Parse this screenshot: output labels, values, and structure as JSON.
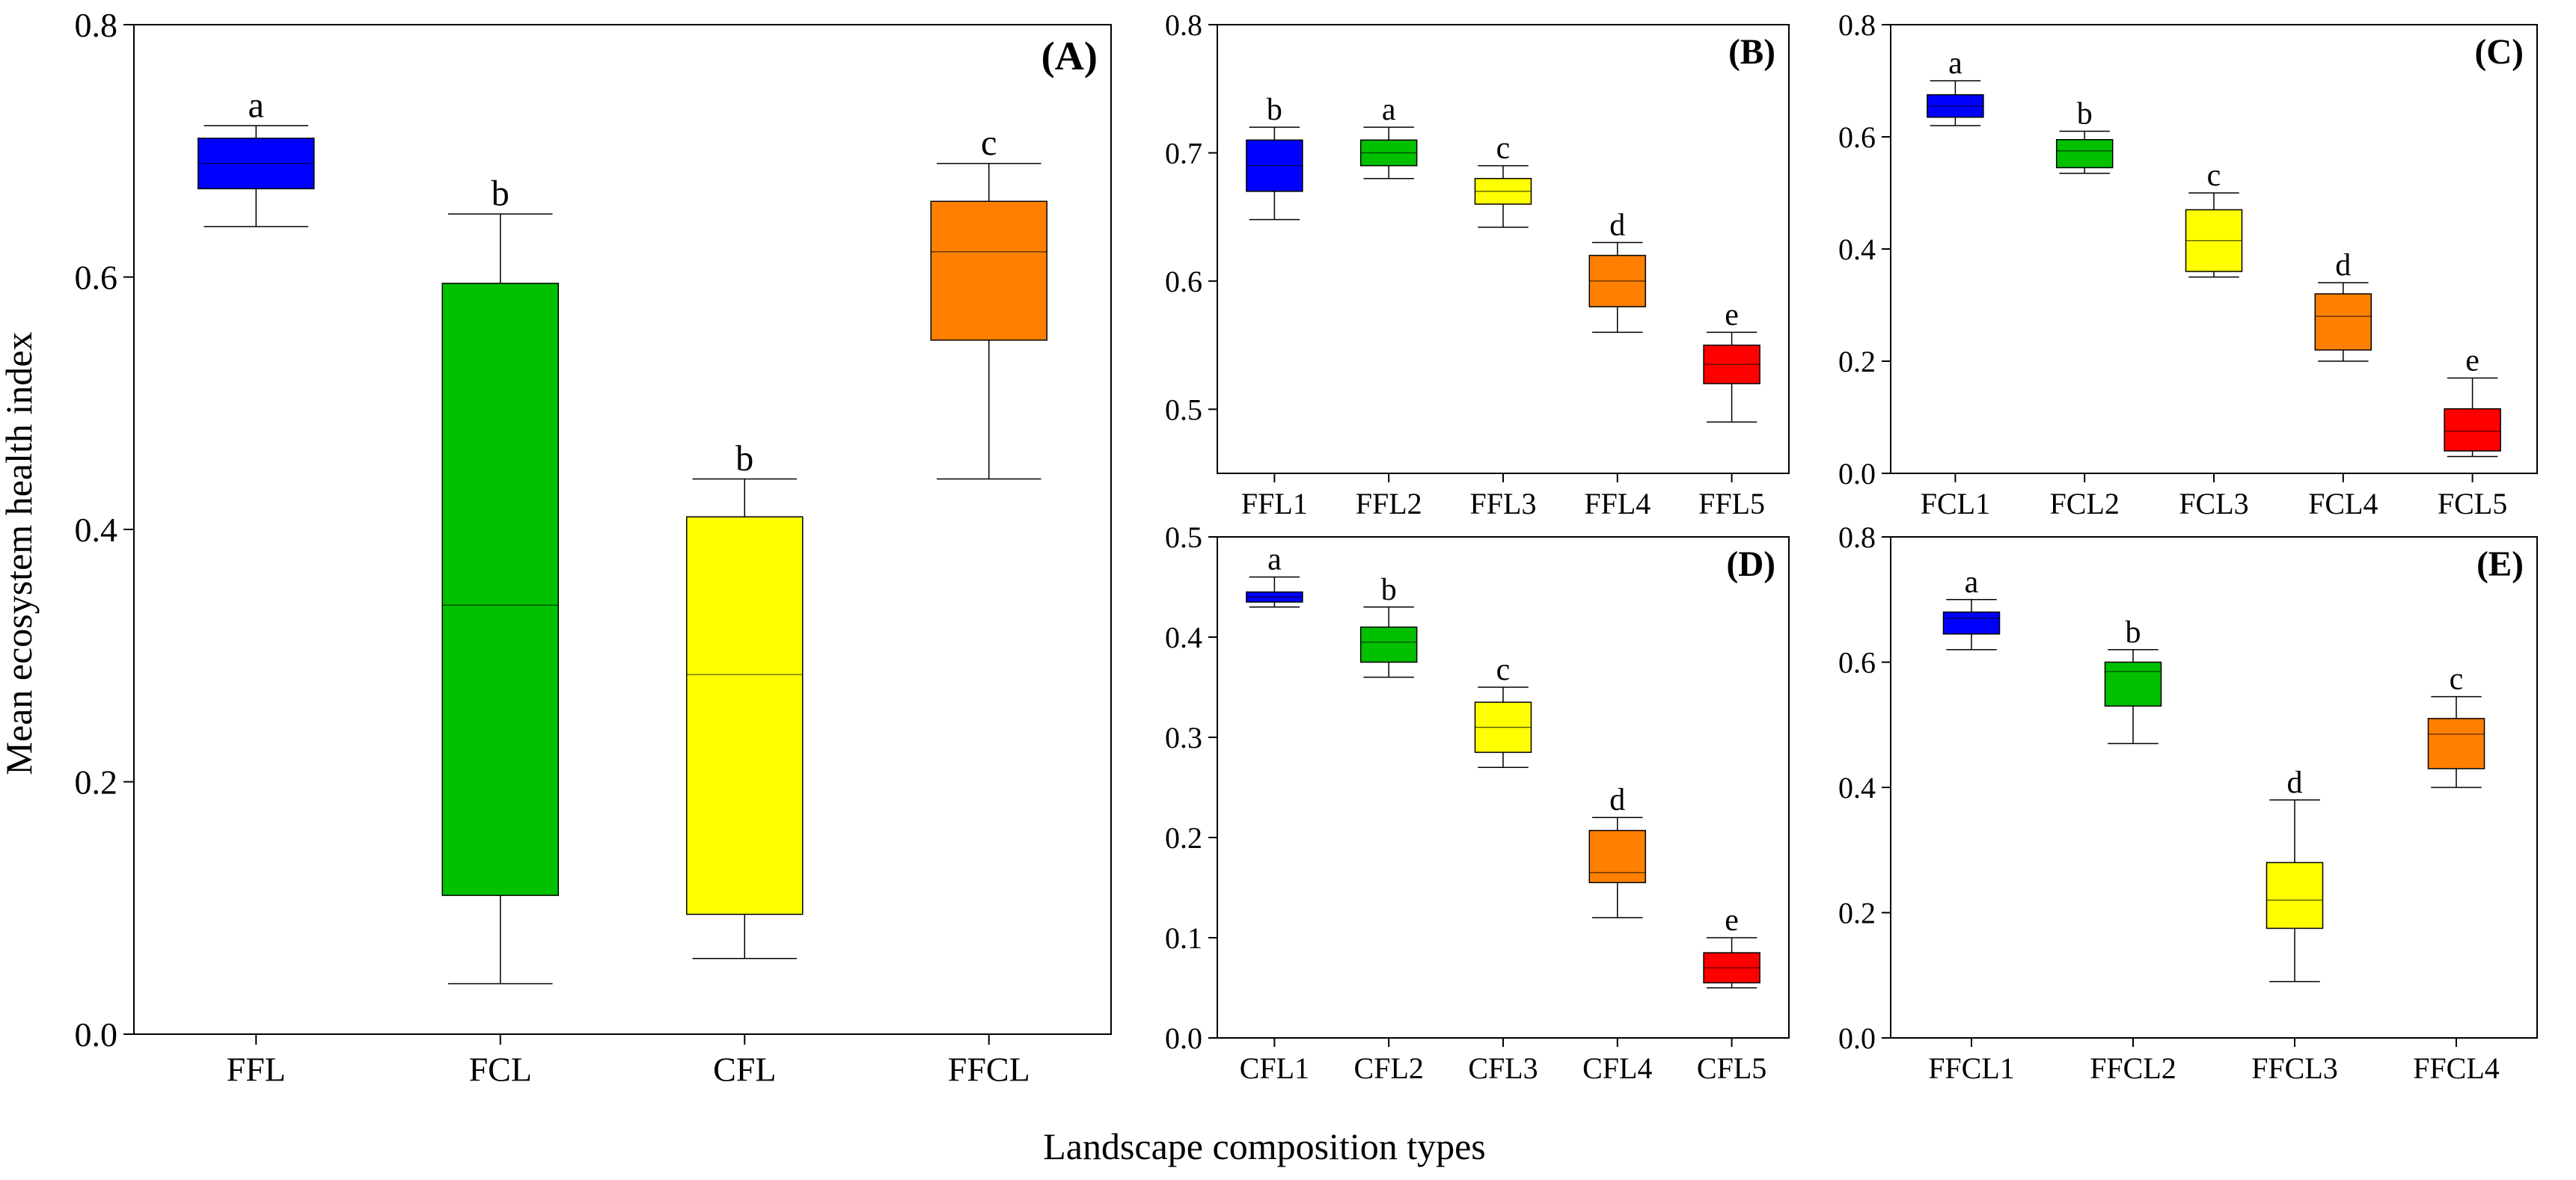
{
  "figure": {
    "ylabel": "Mean ecosystem health index",
    "xlabel": "Landscape composition types"
  },
  "colors": {
    "blue": "#0000ff",
    "green": "#00c000",
    "yellow": "#ffff00",
    "orange": "#ff8000",
    "red": "#ff0000"
  },
  "chart_data": [
    {
      "type": "box",
      "panel": "(A)",
      "ylim": [
        0,
        0.8
      ],
      "yticks": [
        "0.0",
        "0.2",
        "0.4",
        "0.6",
        "0.8"
      ],
      "categories": [
        "FFL",
        "FCL",
        "CFL",
        "FFCL"
      ],
      "letters": [
        "a",
        "b",
        "b",
        "c"
      ],
      "fills": [
        "blue",
        "green",
        "yellow",
        "orange"
      ],
      "boxes": [
        {
          "min": 0.64,
          "q1": 0.67,
          "median": 0.69,
          "q3": 0.71,
          "max": 0.72
        },
        {
          "min": 0.04,
          "q1": 0.11,
          "median": 0.34,
          "q3": 0.595,
          "max": 0.65
        },
        {
          "min": 0.06,
          "q1": 0.095,
          "median": 0.285,
          "q3": 0.41,
          "max": 0.44
        },
        {
          "min": 0.44,
          "q1": 0.55,
          "median": 0.62,
          "q3": 0.66,
          "max": 0.69
        }
      ]
    },
    {
      "type": "box",
      "panel": "(B)",
      "ylim": [
        0.45,
        0.8
      ],
      "yticks": [
        "0.5",
        "0.6",
        "0.7",
        "0.8"
      ],
      "categories": [
        "FFL1",
        "FFL2",
        "FFL3",
        "FFL4",
        "FFL5"
      ],
      "letters": [
        "b",
        "a",
        "c",
        "d",
        "e"
      ],
      "fills": [
        "blue",
        "green",
        "yellow",
        "orange",
        "red"
      ],
      "boxes": [
        {
          "min": 0.648,
          "q1": 0.67,
          "median": 0.69,
          "q3": 0.71,
          "max": 0.72
        },
        {
          "min": 0.68,
          "q1": 0.69,
          "median": 0.7,
          "q3": 0.71,
          "max": 0.72
        },
        {
          "min": 0.642,
          "q1": 0.66,
          "median": 0.67,
          "q3": 0.68,
          "max": 0.69
        },
        {
          "min": 0.56,
          "q1": 0.58,
          "median": 0.6,
          "q3": 0.62,
          "max": 0.63
        },
        {
          "min": 0.49,
          "q1": 0.52,
          "median": 0.535,
          "q3": 0.55,
          "max": 0.56
        }
      ]
    },
    {
      "type": "box",
      "panel": "(C)",
      "ylim": [
        0,
        0.8
      ],
      "yticks": [
        "0.0",
        "0.2",
        "0.4",
        "0.6",
        "0.8"
      ],
      "categories": [
        "FCL1",
        "FCL2",
        "FCL3",
        "FCL4",
        "FCL5"
      ],
      "letters": [
        "a",
        "b",
        "c",
        "d",
        "e"
      ],
      "fills": [
        "blue",
        "green",
        "yellow",
        "orange",
        "red"
      ],
      "boxes": [
        {
          "min": 0.62,
          "q1": 0.635,
          "median": 0.655,
          "q3": 0.675,
          "max": 0.7
        },
        {
          "min": 0.535,
          "q1": 0.545,
          "median": 0.575,
          "q3": 0.595,
          "max": 0.61
        },
        {
          "min": 0.35,
          "q1": 0.36,
          "median": 0.415,
          "q3": 0.47,
          "max": 0.5
        },
        {
          "min": 0.2,
          "q1": 0.22,
          "median": 0.28,
          "q3": 0.32,
          "max": 0.34
        },
        {
          "min": 0.03,
          "q1": 0.04,
          "median": 0.075,
          "q3": 0.115,
          "max": 0.17
        }
      ]
    },
    {
      "type": "box",
      "panel": "(D)",
      "ylim": [
        0,
        0.5
      ],
      "yticks": [
        "0.0",
        "0.1",
        "0.2",
        "0.3",
        "0.4",
        "0.5"
      ],
      "categories": [
        "CFL1",
        "CFL2",
        "CFL3",
        "CFL4",
        "CFL5"
      ],
      "letters": [
        "a",
        "b",
        "c",
        "d",
        "e"
      ],
      "fills": [
        "blue",
        "green",
        "yellow",
        "orange",
        "red"
      ],
      "boxes": [
        {
          "min": 0.43,
          "q1": 0.435,
          "median": 0.44,
          "q3": 0.445,
          "max": 0.46
        },
        {
          "min": 0.36,
          "q1": 0.375,
          "median": 0.395,
          "q3": 0.41,
          "max": 0.43
        },
        {
          "min": 0.27,
          "q1": 0.285,
          "median": 0.31,
          "q3": 0.335,
          "max": 0.35
        },
        {
          "min": 0.12,
          "q1": 0.155,
          "median": 0.165,
          "q3": 0.207,
          "max": 0.22
        },
        {
          "min": 0.05,
          "q1": 0.055,
          "median": 0.07,
          "q3": 0.085,
          "max": 0.1
        }
      ]
    },
    {
      "type": "box",
      "panel": "(E)",
      "ylim": [
        0,
        0.8
      ],
      "yticks": [
        "0.0",
        "0.2",
        "0.4",
        "0.6",
        "0.8"
      ],
      "categories": [
        "FFCL1",
        "FFCL2",
        "FFCL3",
        "FFCL4"
      ],
      "letters": [
        "a",
        "b",
        "d",
        "c"
      ],
      "fills": [
        "blue",
        "green",
        "yellow",
        "orange"
      ],
      "boxes": [
        {
          "min": 0.62,
          "q1": 0.645,
          "median": 0.67,
          "q3": 0.68,
          "max": 0.7
        },
        {
          "min": 0.47,
          "q1": 0.53,
          "median": 0.585,
          "q3": 0.6,
          "max": 0.62
        },
        {
          "min": 0.09,
          "q1": 0.175,
          "median": 0.22,
          "q3": 0.28,
          "max": 0.38
        },
        {
          "min": 0.4,
          "q1": 0.43,
          "median": 0.485,
          "q3": 0.51,
          "max": 0.545
        }
      ]
    }
  ]
}
